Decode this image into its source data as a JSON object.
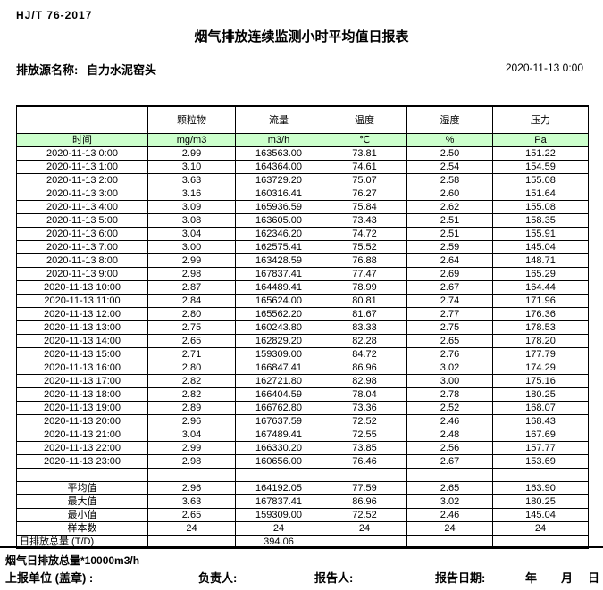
{
  "page": {
    "doc_code": "HJ/T 76-2017",
    "title": "烟气排放连续监测小时平均值日报表",
    "source_label": "排放源名称:",
    "source_value": "自力水泥窑头",
    "report_datetime": "2020-11-13 0:00"
  },
  "table": {
    "time_header": "时间",
    "param_headers": [
      "颗粒物",
      "流量",
      "温度",
      "湿度",
      "压力"
    ],
    "unit_headers": [
      "mg/m3",
      "m3/h",
      "℃",
      "%",
      "Pa"
    ],
    "rows": [
      [
        "2020-11-13 0:00",
        "2.99",
        "163563.00",
        "73.81",
        "2.50",
        "151.22"
      ],
      [
        "2020-11-13 1:00",
        "3.10",
        "164364.00",
        "74.61",
        "2.54",
        "154.59"
      ],
      [
        "2020-11-13 2:00",
        "3.63",
        "163729.20",
        "75.07",
        "2.58",
        "155.08"
      ],
      [
        "2020-11-13 3:00",
        "3.16",
        "160316.41",
        "76.27",
        "2.60",
        "151.64"
      ],
      [
        "2020-11-13 4:00",
        "3.09",
        "165936.59",
        "75.84",
        "2.62",
        "155.08"
      ],
      [
        "2020-11-13 5:00",
        "3.08",
        "163605.00",
        "73.43",
        "2.51",
        "158.35"
      ],
      [
        "2020-11-13 6:00",
        "3.04",
        "162346.20",
        "74.72",
        "2.51",
        "155.91"
      ],
      [
        "2020-11-13 7:00",
        "3.00",
        "162575.41",
        "75.52",
        "2.59",
        "145.04"
      ],
      [
        "2020-11-13 8:00",
        "2.99",
        "163428.59",
        "76.88",
        "2.64",
        "148.71"
      ],
      [
        "2020-11-13 9:00",
        "2.98",
        "167837.41",
        "77.47",
        "2.69",
        "165.29"
      ],
      [
        "2020-11-13 10:00",
        "2.87",
        "164489.41",
        "78.99",
        "2.67",
        "164.44"
      ],
      [
        "2020-11-13 11:00",
        "2.84",
        "165624.00",
        "80.81",
        "2.74",
        "171.96"
      ],
      [
        "2020-11-13 12:00",
        "2.80",
        "165562.20",
        "81.67",
        "2.77",
        "176.36"
      ],
      [
        "2020-11-13 13:00",
        "2.75",
        "160243.80",
        "83.33",
        "2.75",
        "178.53"
      ],
      [
        "2020-11-13 14:00",
        "2.65",
        "162829.20",
        "82.28",
        "2.65",
        "178.20"
      ],
      [
        "2020-11-13 15:00",
        "2.71",
        "159309.00",
        "84.72",
        "2.76",
        "177.79"
      ],
      [
        "2020-11-13 16:00",
        "2.80",
        "166847.41",
        "86.96",
        "3.02",
        "174.29"
      ],
      [
        "2020-11-13 17:00",
        "2.82",
        "162721.80",
        "82.98",
        "3.00",
        "175.16"
      ],
      [
        "2020-11-13 18:00",
        "2.82",
        "166404.59",
        "78.04",
        "2.78",
        "180.25"
      ],
      [
        "2020-11-13 19:00",
        "2.89",
        "166762.80",
        "73.36",
        "2.52",
        "168.07"
      ],
      [
        "2020-11-13 20:00",
        "2.96",
        "167637.59",
        "72.52",
        "2.46",
        "168.43"
      ],
      [
        "2020-11-13 21:00",
        "3.04",
        "167489.41",
        "72.55",
        "2.48",
        "167.69"
      ],
      [
        "2020-11-13 22:00",
        "2.99",
        "166330.20",
        "73.85",
        "2.56",
        "157.77"
      ],
      [
        "2020-11-13 23:00",
        "2.98",
        "160656.00",
        "76.46",
        "2.67",
        "153.69"
      ]
    ],
    "summary_rows": [
      {
        "label": "平均值",
        "values": [
          "2.96",
          "164192.05",
          "77.59",
          "2.65",
          "163.90"
        ]
      },
      {
        "label": "最大值",
        "values": [
          "3.63",
          "167837.41",
          "86.96",
          "3.02",
          "180.25"
        ]
      },
      {
        "label": "最小值",
        "values": [
          "2.65",
          "159309.00",
          "72.52",
          "2.46",
          "145.04"
        ]
      },
      {
        "label": "样本数",
        "values": [
          "24",
          "24",
          "24",
          "24",
          "24"
        ]
      },
      {
        "label": "日排放总量 (T/D)",
        "values": [
          "",
          "394.06",
          "",
          "",
          ""
        ],
        "label_align": "left"
      }
    ]
  },
  "footer": {
    "note": "烟气日排放总量*10000m3/h",
    "report_unit_label": "上报单位 (盖章) :",
    "responsible_label": "负责人:",
    "reporter_label": "报告人:",
    "report_date_label": "报告日期:",
    "year_label": "年",
    "month_label": "月",
    "day_label": "日"
  },
  "colors": {
    "header_green": "#ccffcc",
    "border": "#000000"
  }
}
